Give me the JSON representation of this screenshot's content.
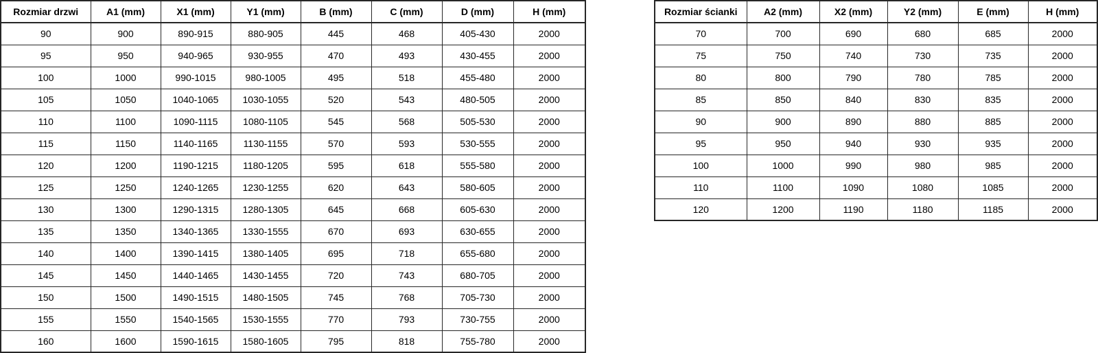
{
  "tables": {
    "doors": {
      "title_column": "Rozmiar drzwi",
      "headers": [
        "Rozmiar drzwi",
        "A1 (mm)",
        "X1 (mm)",
        "Y1 (mm)",
        "B (mm)",
        "C (mm)",
        "D (mm)",
        "H (mm)"
      ],
      "rows": [
        [
          "90",
          "900",
          "890-915",
          "880-905",
          "445",
          "468",
          "405-430",
          "2000"
        ],
        [
          "95",
          "950",
          "940-965",
          "930-955",
          "470",
          "493",
          "430-455",
          "2000"
        ],
        [
          "100",
          "1000",
          "990-1015",
          "980-1005",
          "495",
          "518",
          "455-480",
          "2000"
        ],
        [
          "105",
          "1050",
          "1040-1065",
          "1030-1055",
          "520",
          "543",
          "480-505",
          "2000"
        ],
        [
          "110",
          "1100",
          "1090-1115",
          "1080-1105",
          "545",
          "568",
          "505-530",
          "2000"
        ],
        [
          "115",
          "1150",
          "1140-1165",
          "1130-1155",
          "570",
          "593",
          "530-555",
          "2000"
        ],
        [
          "120",
          "1200",
          "1190-1215",
          "1180-1205",
          "595",
          "618",
          "555-580",
          "2000"
        ],
        [
          "125",
          "1250",
          "1240-1265",
          "1230-1255",
          "620",
          "643",
          "580-605",
          "2000"
        ],
        [
          "130",
          "1300",
          "1290-1315",
          "1280-1305",
          "645",
          "668",
          "605-630",
          "2000"
        ],
        [
          "135",
          "1350",
          "1340-1365",
          "1330-1555",
          "670",
          "693",
          "630-655",
          "2000"
        ],
        [
          "140",
          "1400",
          "1390-1415",
          "1380-1405",
          "695",
          "718",
          "655-680",
          "2000"
        ],
        [
          "145",
          "1450",
          "1440-1465",
          "1430-1455",
          "720",
          "743",
          "680-705",
          "2000"
        ],
        [
          "150",
          "1500",
          "1490-1515",
          "1480-1505",
          "745",
          "768",
          "705-730",
          "2000"
        ],
        [
          "155",
          "1550",
          "1540-1565",
          "1530-1555",
          "770",
          "793",
          "730-755",
          "2000"
        ],
        [
          "160",
          "1600",
          "1590-1615",
          "1580-1605",
          "795",
          "818",
          "755-780",
          "2000"
        ]
      ]
    },
    "walls": {
      "title_column": "Rozmiar ścianki",
      "headers": [
        "Rozmiar ścianki",
        "A2 (mm)",
        "X2 (mm)",
        "Y2 (mm)",
        "E (mm)",
        "H (mm)"
      ],
      "rows": [
        [
          "70",
          "700",
          "690",
          "680",
          "685",
          "2000"
        ],
        [
          "75",
          "750",
          "740",
          "730",
          "735",
          "2000"
        ],
        [
          "80",
          "800",
          "790",
          "780",
          "785",
          "2000"
        ],
        [
          "85",
          "850",
          "840",
          "830",
          "835",
          "2000"
        ],
        [
          "90",
          "900",
          "890",
          "880",
          "885",
          "2000"
        ],
        [
          "95",
          "950",
          "940",
          "930",
          "935",
          "2000"
        ],
        [
          "100",
          "1000",
          "990",
          "980",
          "985",
          "2000"
        ],
        [
          "110",
          "1100",
          "1090",
          "1080",
          "1085",
          "2000"
        ],
        [
          "120",
          "1200",
          "1190",
          "1180",
          "1185",
          "2000"
        ]
      ]
    }
  },
  "colors": {
    "border": "#262626",
    "text": "#000000",
    "background": "#ffffff"
  }
}
